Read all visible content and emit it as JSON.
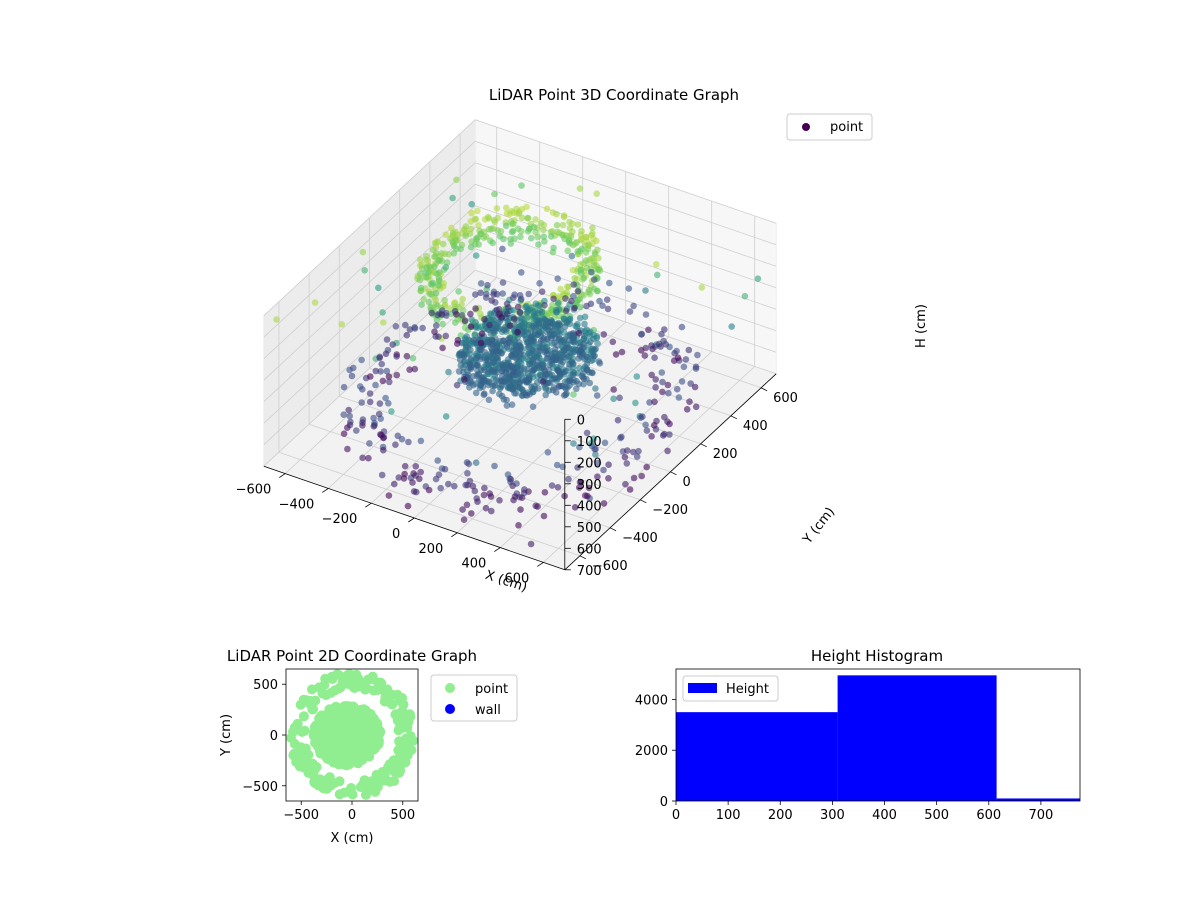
{
  "chart_data": [
    {
      "type": "scatter",
      "title": "LiDAR Point 3D Coordinate Graph",
      "xlabel": "X (cm)",
      "ylabel": "Y (cm)",
      "zlabel": "H (cm)",
      "xlim": [
        -700,
        700
      ],
      "ylim": [
        -700,
        700
      ],
      "zlim": [
        700,
        0
      ],
      "x_ticks": [
        -600,
        -400,
        -200,
        0,
        200,
        400,
        600
      ],
      "y_ticks": [
        -600,
        -400,
        -200,
        0,
        200,
        400,
        600
      ],
      "z_ticks": [
        0,
        100,
        200,
        300,
        400,
        500,
        600,
        700
      ],
      "grid": true,
      "legend": {
        "position": "top-right",
        "entries": [
          "point"
        ]
      },
      "colormap": "viridis",
      "color_by": "H",
      "series": [
        {
          "name": "point",
          "color": "#440154",
          "clusters": [
            {
              "kind": "ring",
              "center": [
                -80,
                40
              ],
              "radius": 320,
              "h_range": [
                0,
                130
              ],
              "count": 420
            },
            {
              "kind": "blob",
              "center": [
                20,
                30
              ],
              "radius": 280,
              "h_range": [
                330,
                470
              ],
              "count": 900
            },
            {
              "kind": "ring",
              "center": [
                0,
                0
              ],
              "radius": 620,
              "h_range": [
                480,
                700
              ],
              "count": 320
            },
            {
              "kind": "scatter",
              "center": [
                0,
                0
              ],
              "radius": 700,
              "h_range": [
                0,
                700
              ],
              "count": 90
            }
          ]
        }
      ]
    },
    {
      "type": "scatter",
      "title": "LiDAR Point 2D Coordinate Graph",
      "xlabel": "X (cm)",
      "ylabel": "Y (cm)",
      "xlim": [
        -650,
        650
      ],
      "ylim": [
        -650,
        650
      ],
      "x_ticks": [
        -500,
        0,
        500
      ],
      "y_ticks": [
        -500,
        0,
        500
      ],
      "legend": {
        "position": "outside-right",
        "entries": [
          "point",
          "wall"
        ]
      },
      "series": [
        {
          "name": "point",
          "color": "#90ee90",
          "clusters": [
            {
              "kind": "blob",
              "center": [
                -50,
                0
              ],
              "radius": 330,
              "count": 700
            },
            {
              "kind": "ring",
              "center": [
                0,
                0
              ],
              "radius": 560,
              "count": 180
            }
          ]
        },
        {
          "name": "wall",
          "color": "#0000ff",
          "clusters": []
        }
      ]
    },
    {
      "type": "bar",
      "title": "Height Histogram",
      "bins": [
        [
          0,
          310
        ],
        [
          310,
          615
        ],
        [
          615,
          775
        ]
      ],
      "values": [
        3500,
        4950,
        100
      ],
      "xlim": [
        0,
        775
      ],
      "ylim": [
        0,
        5200
      ],
      "x_ticks": [
        0,
        100,
        200,
        300,
        400,
        500,
        600,
        700
      ],
      "y_ticks": [
        0,
        2000,
        4000
      ],
      "legend": {
        "position": "top-left",
        "entries": [
          "Height"
        ]
      },
      "series": [
        {
          "name": "Height",
          "color": "#0000ff"
        }
      ]
    }
  ]
}
